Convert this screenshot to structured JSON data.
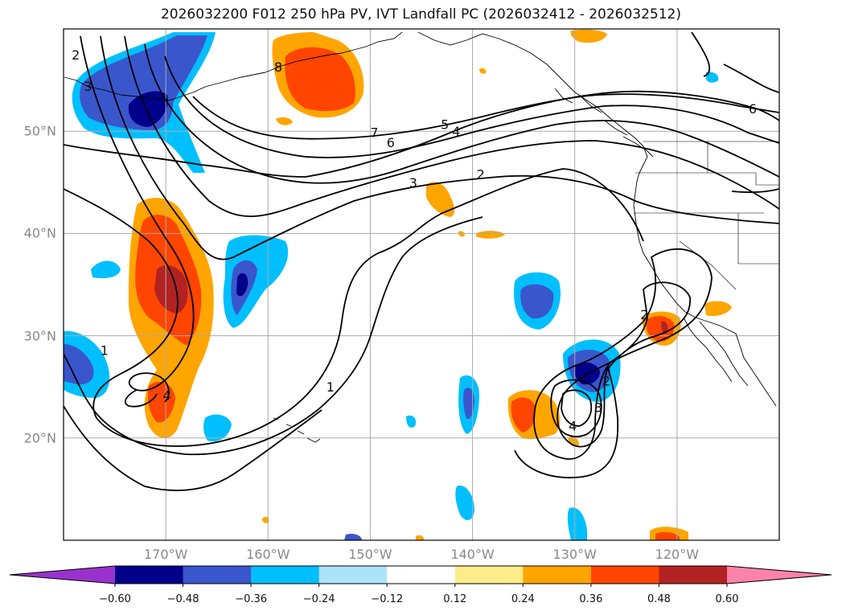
{
  "title": "2026032200 F012 250 hPa PV, IVT Landfall PC (2026032412 - 2026032512)",
  "map": {
    "lon_range": [
      180,
      110
    ],
    "lat_range": [
      10,
      60
    ],
    "lon_ticks": [
      {
        "lon": 170,
        "label": "170°W"
      },
      {
        "lon": 160,
        "label": "160°W"
      },
      {
        "lon": 150,
        "label": "150°W"
      },
      {
        "lon": 140,
        "label": "140°W"
      },
      {
        "lon": 130,
        "label": "130°W"
      },
      {
        "lon": 120,
        "label": "120°W"
      }
    ],
    "lat_ticks": [
      {
        "lat": 50,
        "label": "50°N"
      },
      {
        "lat": 40,
        "label": "40°N"
      },
      {
        "lat": 30,
        "label": "30°N"
      },
      {
        "lat": 20,
        "label": "20°N"
      }
    ],
    "grid": true
  },
  "contour_labels": [
    {
      "text": "7",
      "lon": 149.6,
      "lat": 49.9
    },
    {
      "text": "6",
      "lon": 148.0,
      "lat": 48.9
    },
    {
      "text": "5",
      "lon": 142.7,
      "lat": 50.7
    },
    {
      "text": "4",
      "lon": 141.6,
      "lat": 50.0
    },
    {
      "text": "3",
      "lon": 145.8,
      "lat": 45.0
    },
    {
      "text": "2",
      "lon": 139.2,
      "lat": 45.8
    },
    {
      "text": "6",
      "lon": 112.6,
      "lat": 52.2
    },
    {
      "text": "2",
      "lon": 178.8,
      "lat": 57.5
    },
    {
      "text": "3",
      "lon": 177.6,
      "lat": 54.4
    },
    {
      "text": "1",
      "lon": 176.0,
      "lat": 28.6
    },
    {
      "text": "4",
      "lon": 169.9,
      "lat": 24.2
    },
    {
      "text": "1",
      "lon": 153.9,
      "lat": 25.0
    },
    {
      "text": "2",
      "lon": 123.2,
      "lat": 32.1
    },
    {
      "text": "2",
      "lon": 126.9,
      "lat": 25.6
    },
    {
      "text": "3",
      "lon": 127.7,
      "lat": 23.0
    },
    {
      "text": "4",
      "lon": 130.2,
      "lat": 21.2
    },
    {
      "text": "8",
      "lon": 159.0,
      "lat": 56.3
    }
  ],
  "colorbar": {
    "colors": [
      "#9932cc",
      "#00008b",
      "#3a56cc",
      "#00bfff",
      "#ade2fb",
      "#ffffff",
      "#ffec8b",
      "#ffa500",
      "#ff4500",
      "#b22222",
      "#ff82ab"
    ],
    "tick_values": [
      -0.6,
      -0.48,
      -0.36,
      -0.24,
      -0.12,
      0.12,
      0.24,
      0.36,
      0.48,
      0.6
    ],
    "tick_labels": [
      "−0.60",
      "−0.48",
      "−0.36",
      "−0.24",
      "−0.12",
      "0.12",
      "0.24",
      "0.36",
      "0.48",
      "0.60"
    ],
    "extend": "both"
  }
}
